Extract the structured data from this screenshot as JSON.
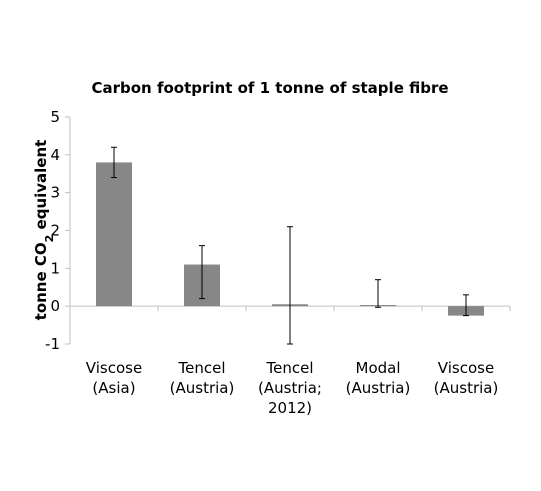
{
  "chart_data": {
    "type": "bar",
    "title": "Carbon footprint of 1 tonne of staple fibre",
    "ylabel_main": "tonne CO",
    "ylabel_sub": "2",
    "ylabel_rest": " equivalent",
    "xlabel": "",
    "ylim": [
      -1,
      5
    ],
    "yticks": [
      -1,
      0,
      1,
      2,
      3,
      4,
      5
    ],
    "grid": false,
    "legend": "none",
    "bar_color": "#878787",
    "categories": [
      [
        "Viscose",
        "(Asia)"
      ],
      [
        "Tencel",
        "(Austria)"
      ],
      [
        "Tencel",
        "(Austria;",
        "2012)"
      ],
      [
        "Modal",
        "(Austria)"
      ],
      [
        "Viscose",
        "(Austria)"
      ]
    ],
    "values": [
      3.8,
      1.1,
      0.05,
      0.03,
      -0.25
    ],
    "error_low": [
      3.4,
      0.2,
      -1.0,
      -0.03,
      -0.25
    ],
    "error_high": [
      4.2,
      1.6,
      2.1,
      0.7,
      0.3
    ]
  }
}
